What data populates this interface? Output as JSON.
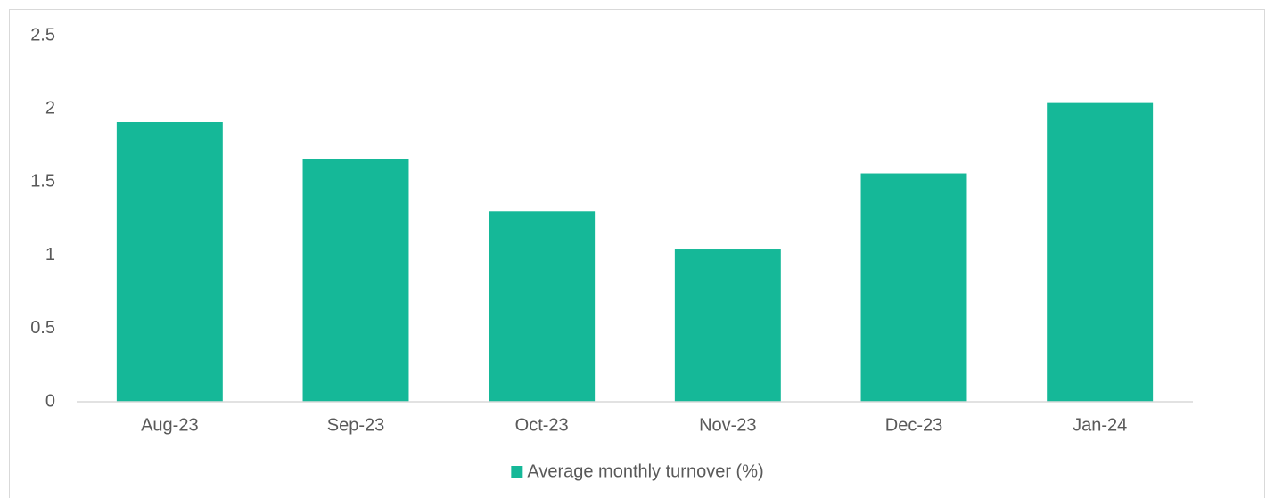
{
  "chart_data": {
    "type": "bar",
    "categories": [
      "Aug-23",
      "Sep-23",
      "Oct-23",
      "Nov-23",
      "Dec-23",
      "Jan-24"
    ],
    "series": [
      {
        "name": "Average monthly turnover (%)",
        "color": "#15b898",
        "values": [
          1.91,
          1.66,
          1.3,
          1.04,
          1.56,
          2.04
        ]
      }
    ],
    "ylim": [
      0,
      2.5
    ],
    "yticks": [
      0,
      0.5,
      1,
      1.5,
      2,
      2.5
    ],
    "grid": false,
    "legend": "bottom"
  }
}
